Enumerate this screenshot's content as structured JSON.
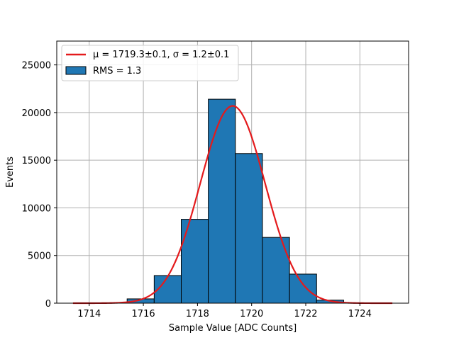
{
  "chart_data": {
    "type": "bar",
    "xlabel": "Sample Value [ADC Counts]",
    "ylabel": "Events",
    "xlim": [
      1712.8,
      1725.8
    ],
    "ylim": [
      0,
      27500
    ],
    "xticks": [
      1714,
      1716,
      1718,
      1720,
      1722,
      1724
    ],
    "yticks": [
      0,
      5000,
      10000,
      15000,
      20000,
      25000
    ],
    "grid": true,
    "legend_position": "top-left",
    "histogram": {
      "name": "RMS = 1.3",
      "color": "#1f77b4",
      "edge_color": "#000000",
      "bins": [
        {
          "start": 1713.4,
          "end": 1714.4,
          "value": 0
        },
        {
          "start": 1714.4,
          "end": 1715.4,
          "value": 0
        },
        {
          "start": 1715.4,
          "end": 1716.4,
          "value": 450
        },
        {
          "start": 1716.4,
          "end": 1717.4,
          "value": 2900
        },
        {
          "start": 1717.4,
          "end": 1718.4,
          "value": 8800
        },
        {
          "start": 1718.4,
          "end": 1719.4,
          "value": 21400
        },
        {
          "start": 1719.4,
          "end": 1720.4,
          "value": 15700
        },
        {
          "start": 1720.4,
          "end": 1721.4,
          "value": 6900
        },
        {
          "start": 1721.4,
          "end": 1722.4,
          "value": 3050
        },
        {
          "start": 1722.4,
          "end": 1723.4,
          "value": 320
        },
        {
          "start": 1723.4,
          "end": 1724.4,
          "value": 0
        }
      ]
    },
    "fit": {
      "name": "μ = 1719.3±0.1, σ = 1.2±0.1",
      "type": "gaussian",
      "color": "#e41a1c",
      "mu": 1719.3,
      "sigma": 1.2,
      "amplitude": 20700,
      "x_range": [
        1713.4,
        1725.2
      ]
    }
  }
}
